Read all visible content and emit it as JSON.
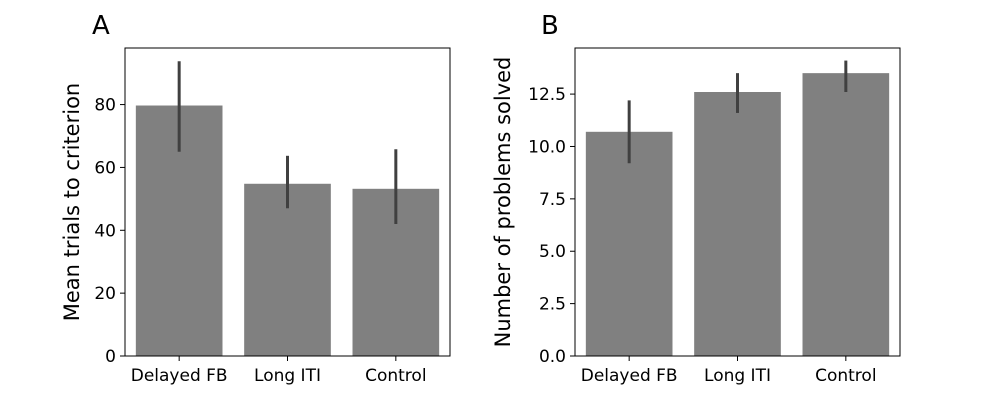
{
  "colors": {
    "bar": "#808080",
    "error_bar": "#404040",
    "axis": "#000000",
    "background": "#ffffff"
  },
  "chart_data": [
    {
      "type": "bar",
      "panel_label": "A",
      "title": "",
      "xlabel": "",
      "ylabel": "Mean trials to criterion",
      "categories": [
        "Delayed FB",
        "Long ITI",
        "Control"
      ],
      "values": [
        79.7,
        54.8,
        53.2
      ],
      "error_low": [
        65.0,
        47.0,
        42.0
      ],
      "error_high": [
        93.8,
        63.7,
        65.8
      ],
      "ylim": [
        0,
        98
      ],
      "yticks": [
        0,
        20,
        40,
        60,
        80
      ],
      "ytick_labels": [
        "0",
        "20",
        "40",
        "60",
        "80"
      ],
      "grid": false,
      "legend": "none"
    },
    {
      "type": "bar",
      "panel_label": "B",
      "title": "",
      "xlabel": "",
      "ylabel": "Number of problems solved",
      "categories": [
        "Delayed FB",
        "Long ITI",
        "Control"
      ],
      "values": [
        10.7,
        12.6,
        13.5
      ],
      "error_low": [
        9.2,
        11.6,
        12.6
      ],
      "error_high": [
        12.2,
        13.5,
        14.1
      ],
      "ylim": [
        0,
        14.7
      ],
      "yticks": [
        0,
        2.5,
        5,
        7.5,
        10,
        12.5
      ],
      "ytick_labels": [
        "0.0",
        "2.5",
        "5.0",
        "7.5",
        "10.0",
        "12.5"
      ],
      "grid": false,
      "legend": "none"
    }
  ]
}
